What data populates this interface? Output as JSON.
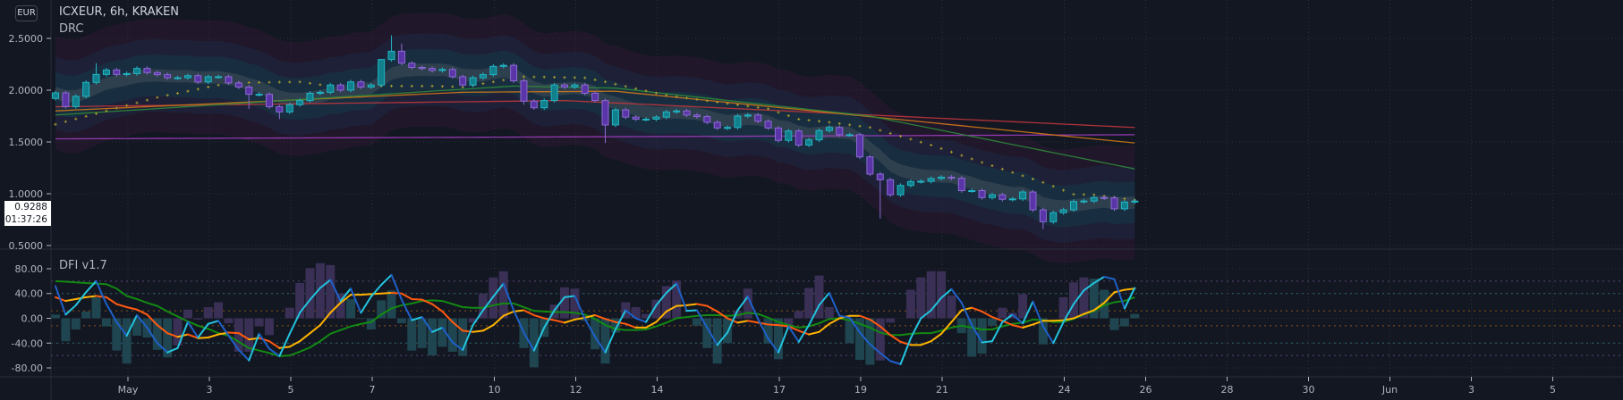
{
  "header": {
    "currency_badge": "EUR",
    "title": "ICXEUR, 6h, KRAKEN",
    "overlay_name": "DRC"
  },
  "last_price": {
    "value": "0.9288",
    "countdown": "01:37:26"
  },
  "colors": {
    "background": "#131722",
    "up_body": "#11808c",
    "up_border": "#22b5c4",
    "down_body": "#5a35a8",
    "down_border": "#8c6ad4",
    "fast_up": "#22c3dd",
    "fast_down": "#1e60c8",
    "medium_up": "#ffb300",
    "medium_down": "#ff5a10",
    "slow": "#128a12",
    "hist_p": "#3a2f55",
    "hist_t": "#1f4650",
    "dots": "#a89a2c",
    "ma_purple": "#a03cc0",
    "ma_red": "#c2363c",
    "ma_orange": "#d07818",
    "ma_green": "#2e8a3a"
  },
  "chart_data": [
    {
      "type": "candlestick",
      "title": "ICXEUR, 6h, KRAKEN",
      "ylim": [
        0.4,
        2.85
      ],
      "y_ticks": [
        "2.5000",
        "2.0000",
        "1.5000",
        "1.0000",
        "0.5000"
      ],
      "y_tick_values": [
        2.5,
        2.0,
        1.5,
        1.0,
        0.5
      ],
      "x_ticks": [
        "May",
        "3",
        "5",
        "7",
        "10",
        "12",
        "14",
        "17",
        "19",
        "21",
        "24",
        "26",
        "28",
        "30",
        "Jun",
        "3",
        "5"
      ],
      "x_tick_days": [
        1,
        3,
        5,
        7,
        10,
        12,
        14,
        17,
        19,
        21,
        24,
        26,
        28,
        30,
        32,
        34,
        36
      ],
      "first_open": 1.92,
      "close": [
        1.974,
        1.842,
        1.94,
        2.075,
        2.152,
        2.195,
        2.152,
        2.16,
        2.21,
        2.17,
        2.15,
        2.12,
        2.12,
        2.14,
        2.08,
        2.13,
        2.13,
        2.07,
        2.03,
        1.96,
        1.96,
        1.84,
        1.79,
        1.86,
        1.9,
        1.97,
        1.98,
        2.05,
        2.0,
        2.08,
        2.03,
        2.05,
        2.296,
        2.376,
        2.26,
        2.22,
        2.21,
        2.19,
        2.2,
        2.13,
        2.05,
        2.12,
        2.15,
        2.23,
        2.24,
        2.09,
        1.894,
        1.83,
        1.9,
        2.05,
        2.03,
        2.05,
        1.97,
        1.9,
        1.664,
        1.81,
        1.74,
        1.72,
        1.72,
        1.74,
        1.79,
        1.8,
        1.76,
        1.745,
        1.69,
        1.635,
        1.64,
        1.75,
        1.76,
        1.7,
        1.635,
        1.515,
        1.606,
        1.47,
        1.52,
        1.61,
        1.64,
        1.57,
        1.57,
        1.356,
        1.19,
        1.135,
        0.99,
        1.08,
        1.118,
        1.12,
        1.147,
        1.16,
        1.15,
        1.03,
        1.03,
        0.963,
        0.99,
        0.946,
        0.95,
        1.017,
        0.845,
        0.73,
        0.817,
        0.845,
        0.925,
        0.93,
        0.963,
        0.96,
        0.854,
        0.92,
        0.9288
      ],
      "high_overrides": {
        "4": 2.26,
        "32": 2.3,
        "33": 2.53,
        "34": 2.45
      },
      "low_overrides": {
        "19": 1.82,
        "22": 1.72,
        "46": 1.86,
        "54": 1.49,
        "81": 0.76,
        "97": 0.66
      },
      "overlay_lines": {
        "ma_purple": [
          [
            0,
            1.53
          ],
          [
            106,
            1.57
          ]
        ],
        "ma_red": [
          [
            0,
            1.84
          ],
          [
            50,
            1.9
          ],
          [
            106,
            1.64
          ]
        ],
        "ma_orange": [
          [
            0,
            1.8
          ],
          [
            40,
            1.98
          ],
          [
            55,
            1.99
          ],
          [
            106,
            1.49
          ]
        ],
        "ma_green": [
          [
            0,
            1.76
          ],
          [
            45,
            2.04
          ],
          [
            55,
            2.02
          ],
          [
            80,
            1.75
          ],
          [
            106,
            1.24
          ]
        ],
        "dots": [
          [
            0,
            1.67
          ],
          [
            10,
            1.93
          ],
          [
            17,
            2.07
          ],
          [
            24,
            2.08
          ],
          [
            27,
            2.04
          ],
          [
            37,
            2.04
          ],
          [
            40,
            2.03
          ],
          [
            46,
            2.13
          ],
          [
            52,
            2.12
          ],
          [
            54,
            2.08
          ],
          [
            60,
            1.95
          ],
          [
            70,
            1.82
          ],
          [
            73,
            1.72
          ],
          [
            76,
            1.69
          ],
          [
            80,
            1.64
          ],
          [
            86,
            1.47
          ],
          [
            92,
            1.27
          ],
          [
            97,
            1.11
          ],
          [
            100,
            0.995
          ],
          [
            102,
            0.99
          ],
          [
            106,
            0.94
          ]
        ]
      }
    },
    {
      "type": "line+bar",
      "title": "DFI v1.7",
      "ylim": [
        -100,
        110
      ],
      "y_ticks": [
        "80.00",
        "40.00",
        "0.00",
        "-40.00",
        "-80.00"
      ],
      "y_tick_values": [
        80,
        40,
        0,
        -40,
        -80
      ],
      "levels": [
        60,
        40,
        12,
        -12,
        -40,
        -60
      ],
      "fast": [
        52,
        6,
        21,
        42,
        60,
        23,
        -6,
        -28,
        5,
        -15,
        -40,
        -55,
        -48,
        -6,
        -31,
        -9,
        -4,
        -28,
        -51,
        -68,
        -25,
        -49,
        -61,
        -25,
        9,
        30,
        49,
        62,
        28,
        48,
        9,
        35,
        54,
        70,
        30,
        -3,
        2,
        -22,
        -15,
        -39,
        -51,
        -11,
        13,
        35,
        56,
        13,
        -23,
        -52,
        -15,
        13,
        34,
        36,
        -1,
        -30,
        -55,
        -18,
        13,
        0,
        -6,
        21,
        41,
        56,
        12,
        13,
        -15,
        -43,
        -23,
        13,
        35,
        -1,
        -33,
        -55,
        -13,
        -38,
        -11,
        21,
        41,
        4,
        1,
        -23,
        -42,
        -56,
        -69,
        -74,
        -32,
        0,
        13,
        33,
        47,
        25,
        -11,
        -39,
        -37,
        -6,
        6,
        -8,
        27,
        -13,
        -40,
        -6,
        23,
        45,
        57,
        67,
        63,
        16,
        49
      ],
      "medium": [
        34,
        28,
        31,
        34,
        36,
        34,
        23,
        18,
        14,
        6,
        -11,
        -24,
        -30,
        -26,
        -32,
        -31,
        -26,
        -23,
        -24,
        -34,
        -32,
        -37,
        -48,
        -46,
        -37,
        -24,
        -11,
        9,
        25,
        38,
        38,
        39,
        40,
        41,
        40,
        31,
        30,
        23,
        11,
        -6,
        -20,
        -22,
        -20,
        -11,
        4,
        11,
        13,
        5,
        0,
        -3,
        -7,
        -2,
        1,
        5,
        -1,
        -6,
        -9,
        -15,
        -15,
        -6,
        11,
        20,
        21,
        23,
        20,
        11,
        0,
        -7,
        -4,
        -7,
        -10,
        -11,
        -13,
        -20,
        -26,
        -22,
        -9,
        0,
        4,
        4,
        -2,
        -13,
        -27,
        -38,
        -43,
        -43,
        -37,
        -25,
        -6,
        13,
        17,
        11,
        2,
        -4,
        -11,
        -15,
        -10,
        -4,
        -4,
        -3,
        0,
        7,
        13,
        25,
        42,
        46,
        48
      ],
      "slow": [
        60,
        59,
        58,
        57,
        56,
        55,
        48,
        36,
        31,
        25,
        20,
        11,
        3,
        -5,
        -12,
        -17,
        -24,
        -28,
        -38,
        -48,
        -52,
        -56,
        -61,
        -60,
        -54,
        -47,
        -37,
        -25,
        -19,
        -13,
        -9,
        -6,
        6,
        16,
        21,
        24,
        28,
        29,
        28,
        23,
        18,
        17,
        17,
        21,
        24,
        24,
        18,
        12,
        11,
        10,
        10,
        9,
        6,
        -1,
        -11,
        -17,
        -19,
        -19,
        -18,
        -13,
        -7,
        0,
        2,
        4,
        5,
        5,
        4,
        5,
        9,
        7,
        1,
        -6,
        -11,
        -15,
        -13,
        -8,
        -1,
        0,
        -3,
        -9,
        -15,
        -23,
        -27,
        -27,
        -25,
        -24,
        -24,
        -20,
        -15,
        -12,
        -15,
        -18,
        -18,
        -13,
        -9,
        -7,
        -2,
        -3,
        -6,
        -6,
        -1,
        6,
        12,
        21,
        26,
        28,
        34
      ],
      "histogram": [
        6,
        -37,
        -18,
        11,
        34,
        -13,
        -52,
        -73,
        -28,
        -31,
        -51,
        -63,
        -44,
        14,
        -2,
        18,
        26,
        -8,
        -54,
        -54,
        -13,
        -27,
        0,
        17,
        57,
        81,
        89,
        86,
        40,
        31,
        -1,
        -18,
        29,
        45,
        -8,
        -52,
        -48,
        -60,
        -46,
        -54,
        -61,
        -7,
        40,
        66,
        76,
        0,
        -48,
        -79,
        -30,
        22,
        50,
        48,
        -4,
        -50,
        -73,
        -23,
        26,
        18,
        7,
        30,
        52,
        61,
        0,
        -12,
        -48,
        -73,
        -40,
        12,
        48,
        0,
        -41,
        -66,
        -15,
        12,
        49,
        69,
        18,
        0,
        -40,
        -67,
        -75,
        -68,
        -7,
        0,
        46,
        66,
        76,
        76,
        37,
        -24,
        -62,
        -57,
        -12,
        17,
        9,
        39,
        0,
        -42,
        0,
        34,
        58,
        66,
        64,
        46,
        -19,
        -13,
        7
      ],
      "histogram_color_runs": [
        [
          "t",
          12
        ],
        [
          "p",
          17
        ],
        [
          "t",
          8
        ],
        [
          "t",
          4
        ],
        [
          "p",
          4
        ],
        [
          "t",
          4
        ],
        [
          "p",
          3
        ],
        [
          "t",
          4
        ],
        [
          "p",
          6
        ],
        [
          "t",
          5
        ],
        [
          "p",
          3
        ],
        [
          "t",
          2
        ],
        [
          "p",
          1
        ],
        [
          "p",
          5
        ],
        [
          "t",
          3
        ],
        [
          "p",
          8
        ],
        [
          "t",
          4
        ],
        [
          "p",
          4
        ],
        [
          "t",
          2
        ],
        [
          "p",
          3
        ],
        [
          "t",
          5
        ]
      ]
    }
  ]
}
